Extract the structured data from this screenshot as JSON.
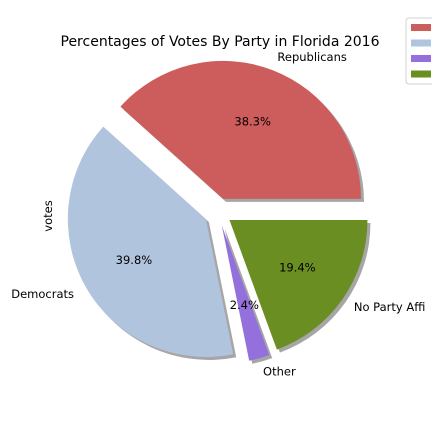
{
  "chart_data": {
    "type": "pie",
    "title": "Percentages of Votes By Party in Florida 2016",
    "ylabel": "votes",
    "slices": [
      {
        "label": "Republicans",
        "value": 38.3,
        "pct_label": "38.3%",
        "color": "#cd5c5c"
      },
      {
        "label": "Democrats",
        "value": 39.8,
        "pct_label": "39.8%",
        "color": "#b0c4de"
      },
      {
        "label": "Other",
        "value": 2.4,
        "pct_label": "2.4%",
        "color": "#9370db"
      },
      {
        "label": "No Party Affi",
        "value": 19.4,
        "pct_label": "19.4%",
        "color": "#6b8e23"
      }
    ],
    "start_angle_deg": 0,
    "direction": "counterclockwise",
    "explode": true,
    "shadow": true,
    "legend": {
      "placement": "top-right",
      "show_labels": false
    }
  }
}
